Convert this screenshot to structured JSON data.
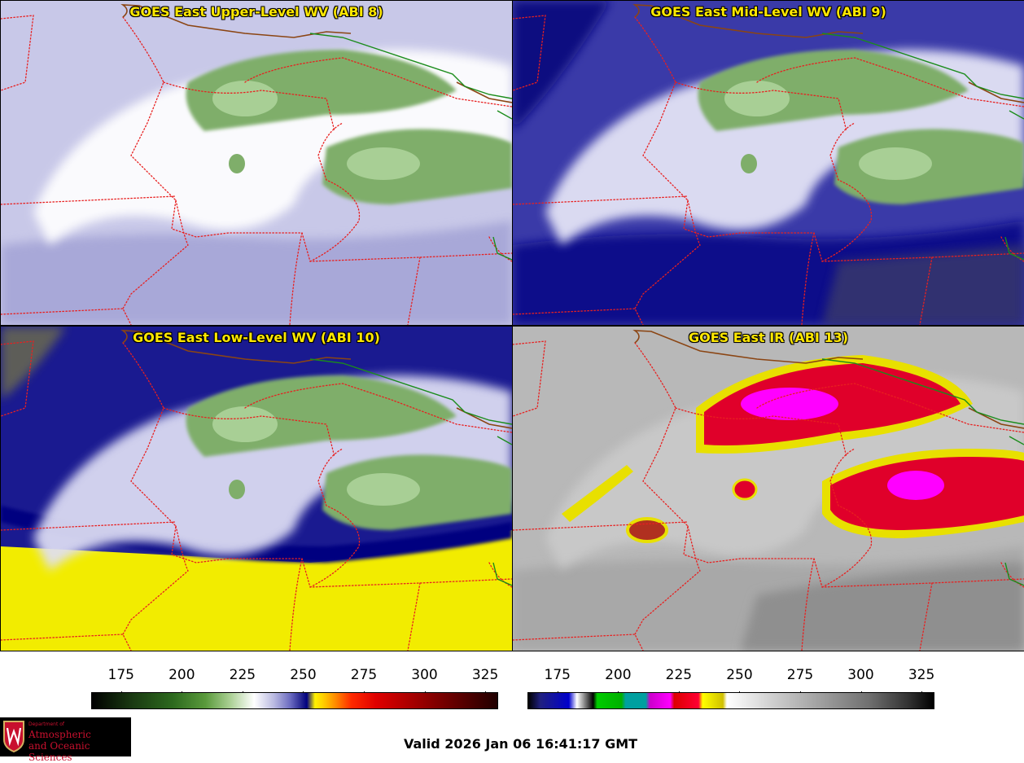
{
  "panels": [
    {
      "id": "p1",
      "title": "GOES East Upper-Level WV (ABI 8)",
      "theme": "upper"
    },
    {
      "id": "p2",
      "title": "GOES East Mid-Level WV (ABI 9)",
      "theme": "mid"
    },
    {
      "id": "p3",
      "title": "GOES East Low-Level WV (ABI 10)",
      "theme": "low"
    },
    {
      "id": "p4",
      "title": "GOES East IR (ABI 13)",
      "theme": "ir"
    }
  ],
  "colorbar_wv": {
    "ticks": [
      "175",
      "200",
      "225",
      "250",
      "275",
      "300",
      "325"
    ],
    "min": 163,
    "max": 330
  },
  "colorbar_ir": {
    "ticks": [
      "175",
      "200",
      "225",
      "250",
      "275",
      "300",
      "325"
    ],
    "min": 163,
    "max": 330
  },
  "logo": {
    "dept": "Department of",
    "line1": "Atmospheric",
    "line2": "and Oceanic Sciences"
  },
  "valid": "Valid 2026 Jan 06 16:41:17 GMT",
  "colors": {
    "state_border": "#e82020",
    "country_border": "#8b4513",
    "province_border": "#1a8c1a",
    "title_text": "#ffe800"
  }
}
